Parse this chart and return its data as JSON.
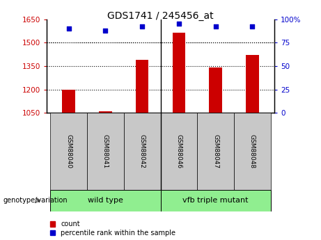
{
  "title": "GDS1741 / 245456_at",
  "samples": [
    "GSM88040",
    "GSM88041",
    "GSM88042",
    "GSM88046",
    "GSM88047",
    "GSM88048"
  ],
  "count_values": [
    1200,
    1060,
    1390,
    1565,
    1340,
    1420
  ],
  "percentile_values": [
    90,
    88,
    92,
    95,
    92,
    92
  ],
  "ylim_left": [
    1050,
    1650
  ],
  "ylim_right": [
    0,
    100
  ],
  "yticks_left": [
    1050,
    1200,
    1350,
    1500,
    1650
  ],
  "yticks_right": [
    0,
    25,
    50,
    75,
    100
  ],
  "group_labels": [
    "wild type",
    "vfb triple mutant"
  ],
  "group_color": "#90EE90",
  "bar_color": "#CC0000",
  "dot_color": "#0000CC",
  "bar_width": 0.35,
  "left_tick_color": "#CC0000",
  "right_tick_color": "#0000CC",
  "xlabel_genotype": "genotype/variation",
  "legend_count": "count",
  "legend_percentile": "percentile rank within the sample",
  "sample_bg": "#C8C8C8"
}
